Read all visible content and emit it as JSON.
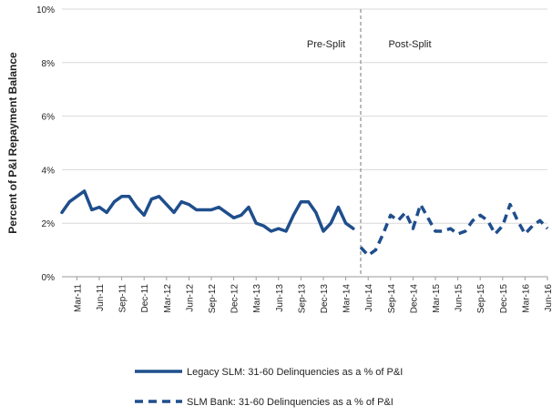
{
  "chart_data": {
    "type": "line",
    "ylabel": "Percent of P&I Repayment  Balance",
    "ylim": [
      0,
      10
    ],
    "yticks": [
      "0%",
      "2%",
      "4%",
      "6%",
      "8%",
      "10%"
    ],
    "xticks": [
      "Mar-11",
      "Jun-11",
      "Sep-11",
      "Dec-11",
      "Mar-12",
      "Jun-12",
      "Sep-12",
      "Dec-12",
      "Mar-13",
      "Jun-13",
      "Sep-13",
      "Dec-13",
      "Mar-14",
      "Jun-14",
      "Sep-14",
      "Dec-14",
      "Mar-15",
      "Jun-15",
      "Sep-15",
      "Dec-15",
      "Mar-16",
      "Jun-16"
    ],
    "x_start": "Jan-11",
    "x_end": "Jun-16",
    "grid": true,
    "divider_x": "May-14",
    "annotations": {
      "left": "Pre-Split",
      "right": "Post-Split"
    },
    "legend_position": "bottom",
    "series": [
      {
        "name": "Legacy SLM: 31-60 Delinquencies as a % of P&I",
        "style": "solid",
        "color": "#1f4e8c",
        "x": [
          "Jan-11",
          "Feb-11",
          "Mar-11",
          "Apr-11",
          "May-11",
          "Jun-11",
          "Jul-11",
          "Aug-11",
          "Sep-11",
          "Oct-11",
          "Nov-11",
          "Dec-11",
          "Jan-12",
          "Feb-12",
          "Mar-12",
          "Apr-12",
          "May-12",
          "Jun-12",
          "Jul-12",
          "Aug-12",
          "Sep-12",
          "Oct-12",
          "Nov-12",
          "Dec-12",
          "Jan-13",
          "Feb-13",
          "Mar-13",
          "Apr-13",
          "May-13",
          "Jun-13",
          "Jul-13",
          "Aug-13",
          "Sep-13",
          "Oct-13",
          "Nov-13",
          "Dec-13",
          "Jan-14",
          "Feb-14",
          "Mar-14",
          "Apr-14"
        ],
        "values": [
          2.4,
          2.8,
          3.0,
          3.2,
          2.5,
          2.6,
          2.4,
          2.8,
          3.0,
          3.0,
          2.6,
          2.3,
          2.9,
          3.0,
          2.7,
          2.4,
          2.8,
          2.7,
          2.5,
          2.5,
          2.5,
          2.6,
          2.4,
          2.2,
          2.3,
          2.6,
          2.0,
          1.9,
          1.7,
          1.8,
          1.7,
          2.3,
          2.8,
          2.8,
          2.4,
          1.7,
          2.0,
          2.6,
          2.0,
          1.8
        ]
      },
      {
        "name": "SLM Bank: 31-60 Delinquencies as a % of P&I",
        "style": "dashed",
        "color": "#1f4e8c",
        "x": [
          "May-14",
          "Jun-14",
          "Jul-14",
          "Aug-14",
          "Sep-14",
          "Oct-14",
          "Nov-14",
          "Dec-14",
          "Jan-15",
          "Feb-15",
          "Mar-15",
          "Apr-15",
          "May-15",
          "Jun-15",
          "Jul-15",
          "Aug-15",
          "Sep-15",
          "Oct-15",
          "Nov-15",
          "Dec-15",
          "Jan-16",
          "Feb-16",
          "Mar-16",
          "Apr-16",
          "May-16",
          "Jun-16"
        ],
        "values": [
          1.1,
          0.8,
          1.0,
          1.6,
          2.3,
          2.1,
          2.4,
          1.8,
          2.7,
          2.2,
          1.7,
          1.7,
          1.8,
          1.6,
          1.7,
          2.1,
          2.3,
          2.1,
          1.6,
          1.9,
          2.7,
          2.1,
          1.6,
          1.9,
          2.1,
          1.8
        ]
      }
    ]
  }
}
